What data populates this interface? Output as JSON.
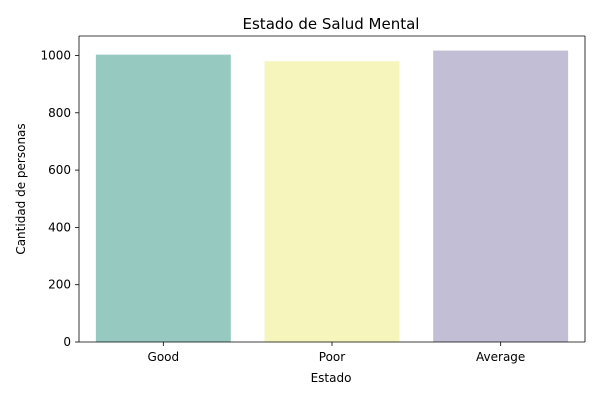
{
  "chart_data": {
    "type": "bar",
    "title": "Estado de Salud Mental",
    "xlabel": "Estado",
    "ylabel": "Cantidad de personas",
    "categories": [
      "Good",
      "Poor",
      "Average"
    ],
    "values": [
      1003,
      980,
      1017
    ],
    "colors": [
      "#96cac1",
      "#f6f6bc",
      "#c1bed6"
    ],
    "ylim": [
      0,
      1068
    ],
    "yticks": [
      0,
      200,
      400,
      600,
      800,
      1000
    ],
    "grid": false,
    "legend": "none"
  }
}
